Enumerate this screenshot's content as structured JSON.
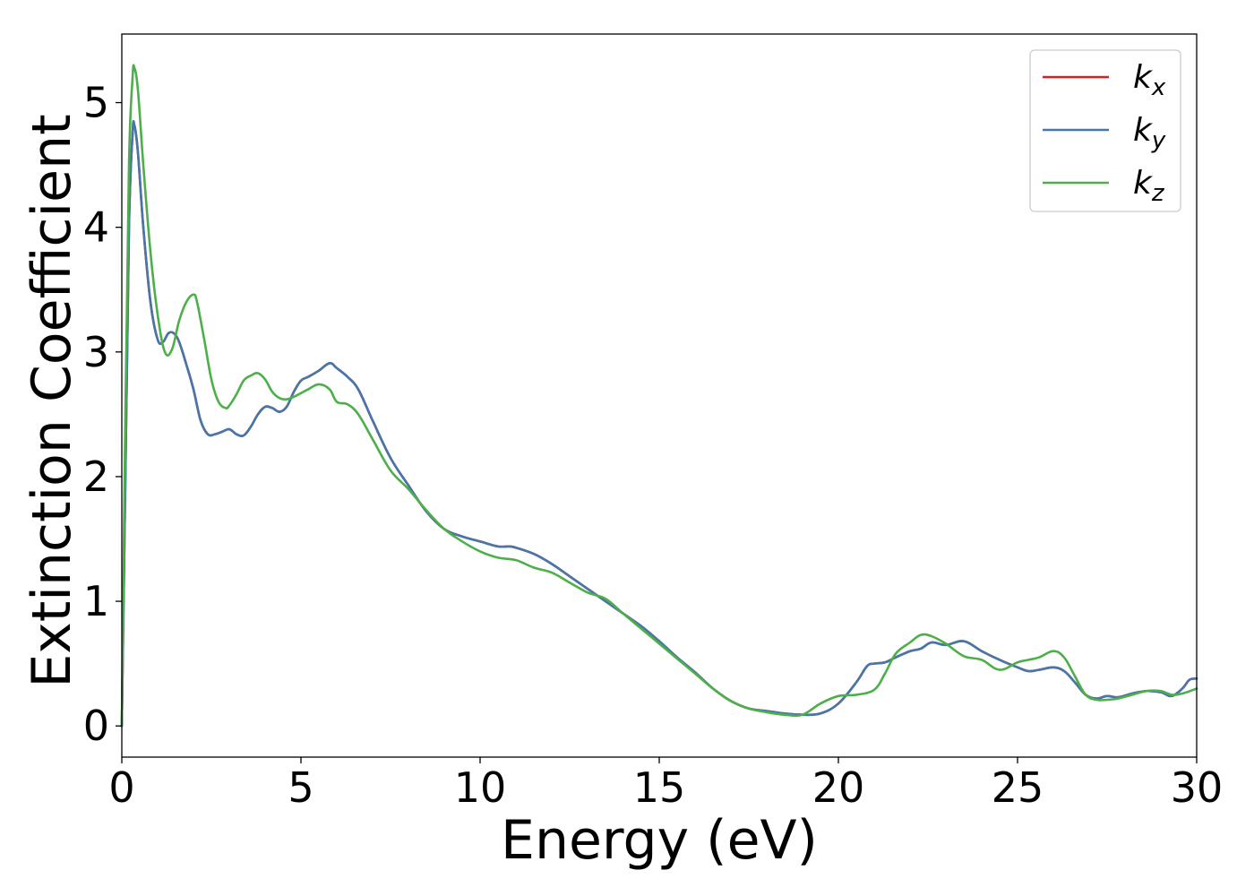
{
  "chart_data": {
    "type": "line",
    "xlabel": "Energy (eV)",
    "ylabel": "Extinction Coefficient",
    "xlim": [
      0,
      30
    ],
    "ylim": [
      -0.25,
      5.55
    ],
    "xticks": [
      0,
      5,
      10,
      15,
      20,
      25,
      30
    ],
    "xtick_labels": [
      "0",
      "5",
      "10",
      "15",
      "20",
      "25",
      "30"
    ],
    "yticks": [
      0,
      1,
      2,
      3,
      4,
      5
    ],
    "ytick_labels": [
      "0",
      "1",
      "2",
      "3",
      "4",
      "5"
    ],
    "grid": false,
    "legend_position": "top-right",
    "series": [
      {
        "name": "k",
        "subscript": "x",
        "color": "#e41a1c",
        "x": [
          0,
          0.1,
          0.2,
          0.3,
          0.35,
          0.45,
          0.6,
          0.8,
          1.0,
          1.15,
          1.3,
          1.45,
          1.6,
          1.8,
          2.0,
          2.2,
          2.4,
          2.6,
          2.8,
          3.0,
          3.2,
          3.4,
          3.6,
          3.8,
          4.0,
          4.2,
          4.4,
          4.6,
          4.8,
          5.0,
          5.2,
          5.5,
          5.8,
          6.0,
          6.3,
          6.6,
          7.0,
          7.5,
          8.0,
          8.5,
          9.0,
          9.5,
          10.0,
          10.5,
          10.8,
          11.0,
          11.5,
          12.0,
          12.5,
          13.0,
          13.5,
          14.0,
          14.5,
          15.0,
          15.5,
          16.0,
          16.5,
          17.0,
          17.5,
          18.0,
          18.5,
          19.0,
          19.5,
          20.0,
          20.5,
          20.8,
          21.0,
          21.3,
          21.6,
          22.0,
          22.3,
          22.6,
          23.0,
          23.5,
          24.0,
          24.5,
          25.0,
          25.3,
          25.6,
          26.0,
          26.3,
          26.6,
          26.9,
          27.2,
          27.5,
          27.8,
          28.2,
          28.6,
          29.0,
          29.3,
          29.6,
          29.8,
          30.0
        ],
        "y": [
          0.0,
          2.0,
          4.0,
          4.75,
          4.82,
          4.6,
          4.0,
          3.4,
          3.1,
          3.08,
          3.15,
          3.15,
          3.08,
          2.9,
          2.7,
          2.45,
          2.34,
          2.34,
          2.36,
          2.38,
          2.34,
          2.33,
          2.4,
          2.5,
          2.56,
          2.55,
          2.52,
          2.56,
          2.68,
          2.77,
          2.8,
          2.85,
          2.91,
          2.87,
          2.8,
          2.7,
          2.45,
          2.15,
          1.93,
          1.72,
          1.58,
          1.52,
          1.48,
          1.44,
          1.44,
          1.43,
          1.38,
          1.3,
          1.2,
          1.1,
          1.0,
          0.9,
          0.8,
          0.68,
          0.55,
          0.43,
          0.3,
          0.2,
          0.14,
          0.12,
          0.1,
          0.09,
          0.1,
          0.18,
          0.35,
          0.48,
          0.5,
          0.51,
          0.55,
          0.6,
          0.62,
          0.67,
          0.65,
          0.68,
          0.6,
          0.53,
          0.47,
          0.44,
          0.45,
          0.47,
          0.44,
          0.35,
          0.25,
          0.22,
          0.24,
          0.23,
          0.26,
          0.28,
          0.27,
          0.24,
          0.3,
          0.37,
          0.38
        ]
      },
      {
        "name": "k",
        "subscript": "y",
        "color": "#4477aa",
        "x": [
          0,
          0.1,
          0.2,
          0.3,
          0.35,
          0.45,
          0.6,
          0.8,
          1.0,
          1.15,
          1.3,
          1.45,
          1.6,
          1.8,
          2.0,
          2.2,
          2.4,
          2.6,
          2.8,
          3.0,
          3.2,
          3.4,
          3.6,
          3.8,
          4.0,
          4.2,
          4.4,
          4.6,
          4.8,
          5.0,
          5.2,
          5.5,
          5.8,
          6.0,
          6.3,
          6.6,
          7.0,
          7.5,
          8.0,
          8.5,
          9.0,
          9.5,
          10.0,
          10.5,
          10.8,
          11.0,
          11.5,
          12.0,
          12.5,
          13.0,
          13.5,
          14.0,
          14.5,
          15.0,
          15.5,
          16.0,
          16.5,
          17.0,
          17.5,
          18.0,
          18.5,
          19.0,
          19.5,
          20.0,
          20.5,
          20.8,
          21.0,
          21.3,
          21.6,
          22.0,
          22.3,
          22.6,
          23.0,
          23.5,
          24.0,
          24.5,
          25.0,
          25.3,
          25.6,
          26.0,
          26.3,
          26.6,
          26.9,
          27.2,
          27.5,
          27.8,
          28.2,
          28.6,
          29.0,
          29.3,
          29.6,
          29.8,
          30.0
        ],
        "y": [
          0.0,
          2.0,
          4.0,
          4.75,
          4.82,
          4.6,
          4.0,
          3.4,
          3.1,
          3.08,
          3.15,
          3.15,
          3.08,
          2.9,
          2.7,
          2.45,
          2.34,
          2.34,
          2.36,
          2.38,
          2.34,
          2.33,
          2.4,
          2.5,
          2.56,
          2.55,
          2.52,
          2.56,
          2.68,
          2.77,
          2.8,
          2.85,
          2.91,
          2.87,
          2.8,
          2.7,
          2.45,
          2.15,
          1.93,
          1.72,
          1.58,
          1.52,
          1.48,
          1.44,
          1.44,
          1.43,
          1.38,
          1.3,
          1.2,
          1.1,
          1.0,
          0.9,
          0.8,
          0.68,
          0.55,
          0.43,
          0.3,
          0.2,
          0.14,
          0.12,
          0.1,
          0.09,
          0.1,
          0.18,
          0.35,
          0.48,
          0.5,
          0.51,
          0.55,
          0.6,
          0.62,
          0.67,
          0.65,
          0.68,
          0.6,
          0.53,
          0.47,
          0.44,
          0.45,
          0.47,
          0.44,
          0.35,
          0.25,
          0.22,
          0.24,
          0.23,
          0.26,
          0.28,
          0.27,
          0.24,
          0.3,
          0.37,
          0.38
        ]
      },
      {
        "name": "k",
        "subscript": "z",
        "color": "#4daf4a",
        "x": [
          0,
          0.1,
          0.2,
          0.3,
          0.35,
          0.45,
          0.6,
          0.8,
          1.0,
          1.2,
          1.4,
          1.6,
          1.8,
          2.0,
          2.1,
          2.3,
          2.5,
          2.7,
          2.9,
          3.0,
          3.2,
          3.4,
          3.6,
          3.8,
          4.0,
          4.2,
          4.4,
          4.6,
          4.8,
          5.0,
          5.2,
          5.5,
          5.8,
          6.0,
          6.3,
          6.6,
          7.0,
          7.5,
          8.0,
          8.5,
          9.0,
          9.5,
          10.0,
          10.5,
          11.0,
          11.5,
          12.0,
          12.5,
          13.0,
          13.5,
          14.0,
          14.5,
          15.0,
          15.5,
          16.0,
          16.5,
          17.0,
          17.5,
          18.0,
          18.5,
          19.0,
          19.5,
          20.0,
          20.5,
          21.0,
          21.3,
          21.6,
          22.0,
          22.3,
          22.6,
          23.0,
          23.5,
          24.0,
          24.5,
          25.0,
          25.3,
          25.6,
          26.0,
          26.3,
          26.6,
          26.9,
          27.2,
          27.5,
          27.8,
          28.2,
          28.6,
          29.0,
          29.3,
          29.6,
          30.0
        ],
        "y": [
          0.0,
          2.5,
          4.5,
          5.2,
          5.28,
          5.1,
          4.5,
          3.8,
          3.3,
          3.0,
          3.02,
          3.25,
          3.4,
          3.46,
          3.4,
          3.1,
          2.78,
          2.6,
          2.55,
          2.57,
          2.66,
          2.77,
          2.81,
          2.83,
          2.78,
          2.68,
          2.63,
          2.62,
          2.64,
          2.67,
          2.7,
          2.74,
          2.7,
          2.6,
          2.58,
          2.5,
          2.3,
          2.05,
          1.9,
          1.73,
          1.58,
          1.48,
          1.4,
          1.35,
          1.33,
          1.27,
          1.23,
          1.15,
          1.07,
          1.02,
          0.9,
          0.78,
          0.66,
          0.54,
          0.42,
          0.3,
          0.2,
          0.14,
          0.11,
          0.09,
          0.09,
          0.18,
          0.24,
          0.25,
          0.29,
          0.42,
          0.58,
          0.67,
          0.73,
          0.72,
          0.66,
          0.56,
          0.53,
          0.45,
          0.51,
          0.53,
          0.55,
          0.6,
          0.55,
          0.4,
          0.25,
          0.21,
          0.21,
          0.22,
          0.25,
          0.28,
          0.28,
          0.25,
          0.26,
          0.3
        ]
      }
    ]
  }
}
